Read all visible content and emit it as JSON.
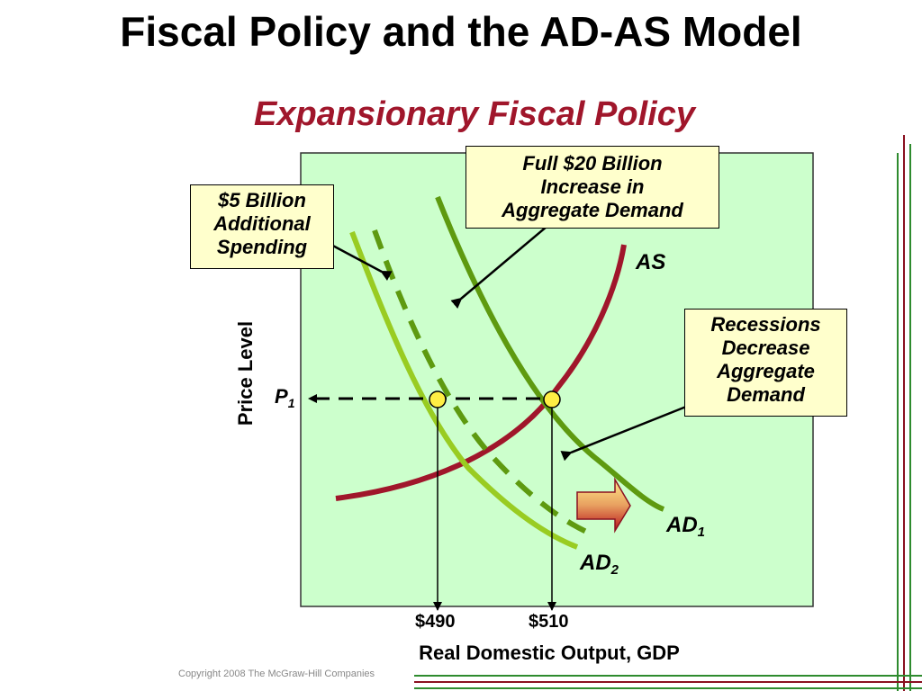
{
  "slide": {
    "title": "Fiscal Policy and the AD-AS Model",
    "subtitle": "Expansionary Fiscal Policy",
    "copyright": "Copyright 2008 The McGraw-Hill Companies"
  },
  "axes": {
    "y_label": "Price Level",
    "x_label": "Real Domestic Output, GDP",
    "price_label_main": "P",
    "price_label_sub": "1",
    "x_ticks": [
      "$490",
      "$510"
    ]
  },
  "curves": {
    "as_label": "AS",
    "ad1_main": "AD",
    "ad1_sub": "1",
    "ad2_main": "AD",
    "ad2_sub": "2"
  },
  "callouts": {
    "spending": [
      "$5 Billion",
      "Additional",
      "Spending"
    ],
    "full_increase": [
      "Full $20 Billion",
      "Increase in",
      "Aggregate Demand"
    ],
    "recessions": [
      "Recessions",
      "Decrease",
      "Aggregate",
      "Demand"
    ]
  },
  "colors": {
    "panel_bg": "#ccffcc",
    "as_curve": "#a0162b",
    "ad1_curve": "#5e9a10",
    "ad2_curve": "#99cc22",
    "dashed_ad": "#5e9a10",
    "equilibrium_point": "#ffee44",
    "callout_bg": "#ffffcc",
    "subtitle": "#a0162b"
  }
}
